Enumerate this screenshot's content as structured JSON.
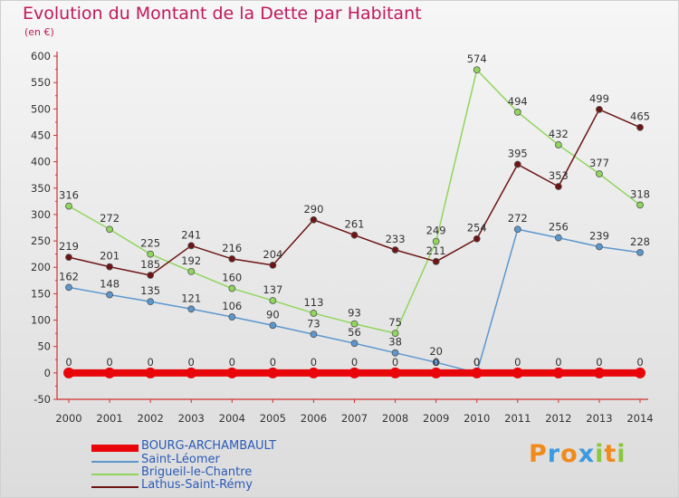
{
  "chart_data": {
    "type": "line",
    "title": "Evolution du Montant de la Dette par Habitant",
    "subtitle": "(en €)",
    "x": [
      "2000",
      "2001",
      "2002",
      "2003",
      "2004",
      "2005",
      "2006",
      "2007",
      "2008",
      "2009",
      "2010",
      "2011",
      "2012",
      "2013",
      "2014"
    ],
    "ylim": [
      -50,
      600
    ],
    "yticks": [
      -50,
      0,
      50,
      100,
      150,
      200,
      250,
      300,
      350,
      400,
      450,
      500,
      550,
      600
    ],
    "grid": false,
    "legend_position": "bottom-left",
    "series": [
      {
        "name": "BOURG-ARCHAMBAULT",
        "color": "#e8060a",
        "values": [
          0,
          0,
          0,
          0,
          0,
          0,
          0,
          0,
          0,
          0,
          0,
          0,
          0,
          0,
          0
        ],
        "labels": [
          "0",
          "0",
          "0",
          "0",
          "0",
          "0",
          "0",
          "0",
          "0",
          "0",
          "0",
          "0",
          "0",
          "0",
          "0"
        ]
      },
      {
        "name": "Saint-Léomer",
        "color": "#5b97cf",
        "values": [
          162,
          148,
          135,
          121,
          106,
          90,
          73,
          56,
          38,
          20,
          0,
          272,
          256,
          239,
          228
        ],
        "labels": [
          "162",
          "148",
          "135",
          "121",
          "106",
          "90",
          "73",
          "56",
          "38",
          "20",
          "0",
          "272",
          "256",
          "239",
          "228"
        ]
      },
      {
        "name": "Brigueil-le-Chantre",
        "color": "#8fd65c",
        "values": [
          316,
          272,
          225,
          192,
          160,
          137,
          113,
          93,
          75,
          249,
          574,
          494,
          432,
          377,
          318
        ],
        "labels": [
          "316",
          "272",
          "225",
          "192",
          "160",
          "137",
          "113",
          "93",
          "75",
          "249",
          "574",
          "494",
          "432",
          "377",
          "318"
        ]
      },
      {
        "name": "Lathus-Saint-Rémy",
        "color": "#6e1414",
        "values": [
          219,
          201,
          185,
          241,
          216,
          204,
          290,
          261,
          233,
          211,
          254,
          395,
          353,
          499,
          465
        ],
        "labels": [
          "219",
          "201",
          "185",
          "241",
          "216",
          "204",
          "290",
          "261",
          "233",
          "211",
          "254",
          "395",
          "353",
          "499",
          "465"
        ]
      }
    ]
  },
  "logo": {
    "letters": [
      "P",
      "r",
      "o",
      "x",
      "i",
      "t",
      "i"
    ],
    "colors": [
      "#f08a1c",
      "#3c9be0",
      "#f08a1c",
      "#3c9be0",
      "#8cc63f",
      "#f08a1c",
      "#8cc63f"
    ]
  }
}
